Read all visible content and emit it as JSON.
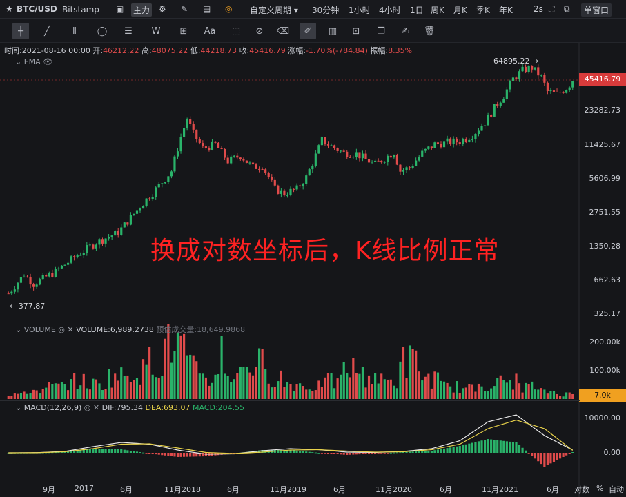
{
  "topbar": {
    "symbol": "BTC/USD",
    "exchange": "Bitstamp",
    "main_chart": "主力",
    "custom_period": "自定义周期",
    "periods": [
      "30分钟",
      "1小时",
      "4小时",
      "1日",
      "周K",
      "月K",
      "季K",
      "年K"
    ],
    "active_period": "周K",
    "refresh": "2s",
    "window_mode": "单窗口"
  },
  "infobar": {
    "time_label": "时间:",
    "time": "2021-08-16 00:00",
    "open_label": "开:",
    "open": "46212.22",
    "high_label": "高:",
    "high": "48075.22",
    "low_label": "低:",
    "low": "44218.73",
    "close_label": "收:",
    "close": "45416.79",
    "change_label": "涨幅:",
    "change": "-1.70%(-784.84)",
    "amp_label": "振幅:",
    "amp": "8.35%"
  },
  "main": {
    "indicator": "EMA",
    "high_marker": "64895.22 →",
    "low_marker": "← 377.87",
    "current_price": "45416.79",
    "y_labels": [
      "23282.73",
      "11425.67",
      "5606.99",
      "2751.55",
      "1350.28",
      "662.63",
      "325.17"
    ],
    "annotation": "换成对数坐标后，K线比例正常"
  },
  "volume": {
    "title": "VOLUME",
    "value_label": "VOLUME:",
    "value": "6,989.2738",
    "est_label": "预估成交量:",
    "est": "18,649.9868",
    "y_labels": [
      "200.00k",
      "100.00k"
    ],
    "current": "7.0k"
  },
  "macd": {
    "title": "MACD(12,26,9)",
    "dif_label": "DIF:",
    "dif": "795.34",
    "dea_label": "DEA:",
    "dea": "693.07",
    "macd_label": "MACD:",
    "macd": "204.55",
    "y_labels": [
      "10000.00",
      "0.00"
    ]
  },
  "x_axis": [
    "9月",
    "2017",
    "6月",
    "11月2018",
    "6月",
    "11月2019",
    "6月",
    "11月2020",
    "6月",
    "11月2021",
    "6月"
  ],
  "footer": {
    "log": "对数",
    "pct": "%",
    "auto": "自动"
  },
  "colors": {
    "up": "#2ab36a",
    "down": "#e04b4b",
    "accent": "#3d7fff",
    "dif": "#e8e8e8",
    "dea": "#e8d24a"
  },
  "chart_data": {
    "type": "candlestick",
    "yscale": "log",
    "ylim": [
      300,
      70000
    ],
    "price_knots": [
      [
        0,
        378
      ],
      [
        5,
        580
      ],
      [
        8,
        470
      ],
      [
        15,
        620
      ],
      [
        22,
        900
      ],
      [
        28,
        1200
      ],
      [
        35,
        1500
      ],
      [
        42,
        2700
      ],
      [
        48,
        4300
      ],
      [
        52,
        6000
      ],
      [
        55,
        13000
      ],
      [
        57,
        19500
      ],
      [
        59,
        14000
      ],
      [
        62,
        10000
      ],
      [
        66,
        11000
      ],
      [
        70,
        7500
      ],
      [
        74,
        8500
      ],
      [
        78,
        6500
      ],
      [
        81,
        6800
      ],
      [
        85,
        4000
      ],
      [
        88,
        3600
      ],
      [
        92,
        4000
      ],
      [
        95,
        5200
      ],
      [
        98,
        8500
      ],
      [
        100,
        12000
      ],
      [
        103,
        10500
      ],
      [
        107,
        9000
      ],
      [
        111,
        8900
      ],
      [
        114,
        7800
      ],
      [
        117,
        7000
      ],
      [
        120,
        8000
      ],
      [
        123,
        9200
      ],
      [
        125,
        6000
      ],
      [
        128,
        6500
      ],
      [
        132,
        9000
      ],
      [
        136,
        11000
      ],
      [
        140,
        11500
      ],
      [
        144,
        11700
      ],
      [
        148,
        13500
      ],
      [
        152,
        18000
      ],
      [
        155,
        25000
      ],
      [
        158,
        33000
      ],
      [
        161,
        48000
      ],
      [
        164,
        58000
      ],
      [
        167,
        62000
      ],
      [
        170,
        50000
      ],
      [
        172,
        36000
      ],
      [
        175,
        34000
      ],
      [
        178,
        39000
      ],
      [
        180,
        45417
      ]
    ],
    "volume_k": [
      20,
      35,
      50,
      70,
      60,
      90,
      110,
      150,
      210,
      120,
      80,
      100,
      140,
      90,
      60,
      50,
      70,
      120,
      90,
      70,
      150,
      80,
      50,
      40,
      60,
      70,
      50,
      30,
      20
    ],
    "macd": {
      "dif": [
        0,
        50,
        400,
        1800,
        3000,
        2500,
        800,
        -400,
        -300,
        600,
        1200,
        900,
        200,
        100,
        400,
        1200,
        3500,
        9000,
        11000,
        5000,
        800
      ],
      "dea": [
        0,
        30,
        300,
        1200,
        2500,
        2600,
        1400,
        100,
        -200,
        200,
        800,
        900,
        500,
        200,
        300,
        900,
        2500,
        7000,
        9500,
        7000,
        700
      ]
    }
  }
}
